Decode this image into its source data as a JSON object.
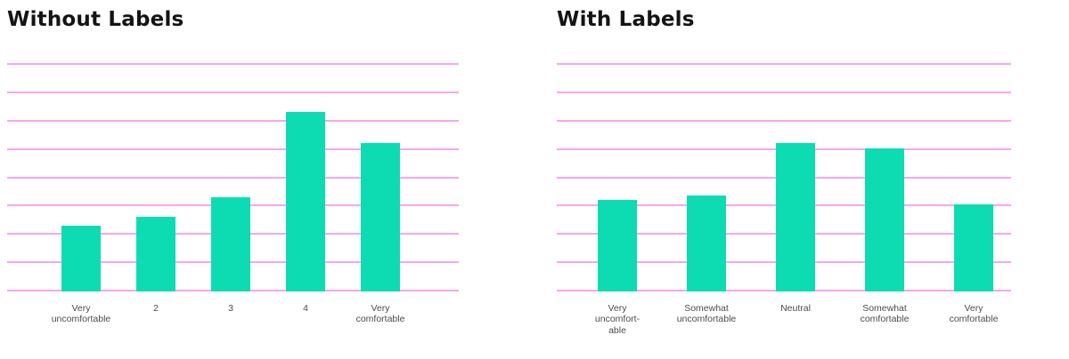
{
  "page": {
    "background": "#ffffff"
  },
  "colors": {
    "bar": "#0ddcb2",
    "gridline": "#f2a8f0",
    "title": "#141414",
    "axis_label": "#4c4c4c"
  },
  "chart_data": [
    {
      "type": "bar",
      "title": "Without Labels",
      "categories": [
        "Very\nuncomfortable",
        "2",
        "3",
        "4",
        "Very\ncomfortable"
      ],
      "values": [
        2.3,
        2.6,
        3.3,
        6.3,
        5.2
      ],
      "xlabel": "",
      "ylabel": "",
      "ylim": [
        0,
        8
      ],
      "gridline_count": 9,
      "grid": "horizontal",
      "legend": false,
      "y_tick_labels": []
    },
    {
      "type": "bar",
      "title": "With Labels",
      "categories": [
        "Very\nuncomfort-\nable",
        "Somewhat\nuncomfortable",
        "Neutral",
        "Somewhat\ncomfortable",
        "Very\ncomfortable"
      ],
      "values": [
        3.2,
        3.35,
        5.2,
        5.0,
        3.05
      ],
      "xlabel": "",
      "ylabel": "",
      "ylim": [
        0,
        8
      ],
      "gridline_count": 9,
      "grid": "horizontal",
      "legend": false,
      "y_tick_labels": []
    }
  ]
}
